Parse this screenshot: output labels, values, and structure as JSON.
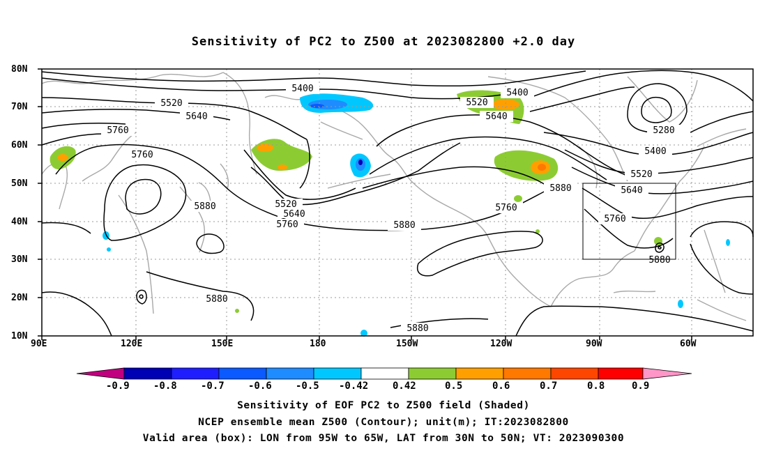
{
  "title": "Sensitivity of PC2 to Z500 at 2023082800 +2.0 day",
  "lat_labels": [
    "80N",
    "70N",
    "60N",
    "50N",
    "40N",
    "30N",
    "20N",
    "10N"
  ],
  "lon_labels": [
    "90E",
    "120E",
    "150E",
    "180",
    "150W",
    "120W",
    "90W",
    "60W"
  ],
  "contour_labels": [
    "5400",
    "5520",
    "5640",
    "5760",
    "5760",
    "5280",
    "5400",
    "5520",
    "5640",
    "5880",
    "5760",
    "5880",
    "5880",
    "5880",
    "5880",
    "5760",
    "5400",
    "5520",
    "5640",
    "5760",
    "5880",
    "5880"
  ],
  "colorbar": {
    "labels": [
      "-0.9",
      "-0.8",
      "-0.7",
      "-0.6",
      "-0.5",
      "-0.42",
      "0.42",
      "0.5",
      "0.6",
      "0.7",
      "0.8",
      "0.9"
    ],
    "colors": [
      "#c0007f",
      "#0000b4",
      "#1e1eff",
      "#0a5aff",
      "#1e8cff",
      "#00c8ff",
      "#ffffff",
      "#8ccc32",
      "#ffa000",
      "#ff7800",
      "#ff4600",
      "#ff0000",
      "#ff96c8"
    ]
  },
  "captions": [
    "Sensitivity of EOF PC2 to Z500 field (Shaded)",
    "NCEP ensemble mean Z500 (Contour); unit(m); IT:2023082800",
    "Valid area (box): LON from 95W to 65W, LAT from 30N to 50N; VT: 2023090300"
  ],
  "valid_box": {
    "lon": [
      -95,
      -65
    ],
    "lat": [
      30,
      50
    ]
  }
}
